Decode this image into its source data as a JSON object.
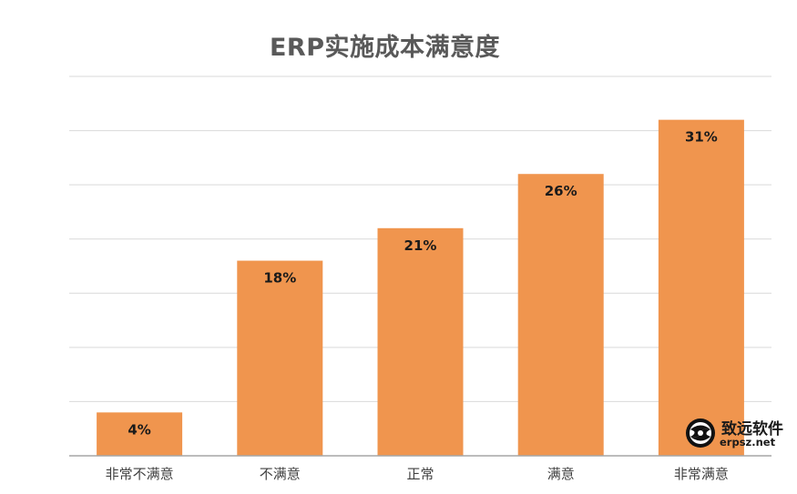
{
  "chart_data": {
    "type": "bar",
    "title": "ERP实施成本满意度",
    "categories": [
      "非常不满意",
      "不满意",
      "正常",
      "满意",
      "非常满意"
    ],
    "values": [
      4,
      18,
      21,
      26,
      31
    ],
    "data_labels": [
      "4%",
      "18%",
      "21%",
      "26%",
      "31%"
    ],
    "xlabel": "",
    "ylabel": "",
    "ylim": [
      0,
      35
    ],
    "grid": true,
    "legend": "none",
    "bar_color": "#F0954E",
    "gridline_color": "#D9D9D9",
    "axis_color": "#A6A6A6"
  },
  "watermark": {
    "name": "致远软件",
    "url": "erpsz.net",
    "icon": "globe-logo-icon"
  }
}
